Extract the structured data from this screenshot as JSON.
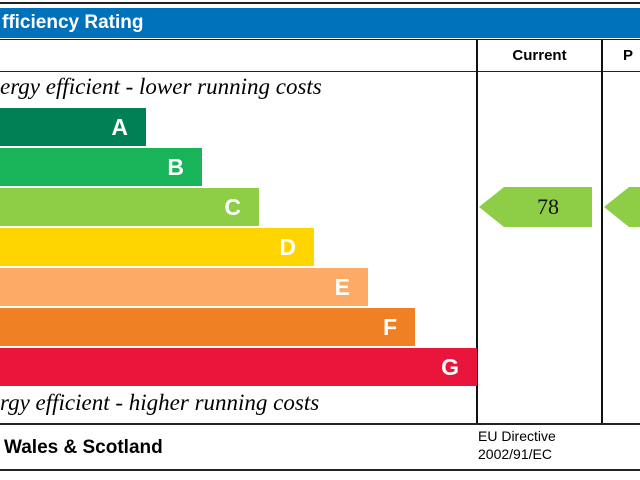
{
  "title": "fficiency Rating",
  "columns": {
    "current": "Current",
    "potential": "P"
  },
  "top_text": "ergy efficient - lower running costs",
  "bottom_text": "rgy efficient - higher running costs",
  "footer": {
    "region": "Wales & Scotland",
    "directive_line1": "EU Directive",
    "directive_line2": "2002/91/EC"
  },
  "colors": {
    "header": "#0072bc"
  },
  "chart_data": {
    "type": "bar",
    "categories": [
      "A",
      "B",
      "C",
      "D",
      "E",
      "F",
      "G"
    ],
    "colors": [
      "#008054",
      "#19b459",
      "#8dce46",
      "#ffd500",
      "#fcaa65",
      "#ef8023",
      "#e9153b"
    ],
    "current_rating": {
      "value": "78",
      "band": "C"
    },
    "potential_rating": {
      "band": "C"
    }
  }
}
